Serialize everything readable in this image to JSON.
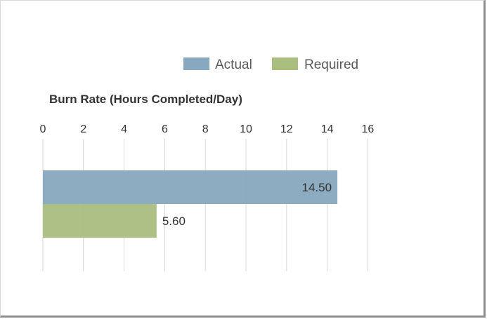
{
  "chart_data": {
    "type": "bar",
    "orientation": "horizontal",
    "title": "Burn Rate (Hours Completed/Day)",
    "x_ticks": [
      "0",
      "2",
      "4",
      "6",
      "8",
      "10",
      "12",
      "14",
      "16"
    ],
    "xlim": [
      0,
      16
    ],
    "grid": true,
    "legend_position": "top-right",
    "series": [
      {
        "name": "Actual",
        "value": 14.5,
        "label": "14.50",
        "color": "#87a8be"
      },
      {
        "name": "Required",
        "value": 5.6,
        "label": "5.60",
        "color": "#a9be7f"
      }
    ]
  }
}
